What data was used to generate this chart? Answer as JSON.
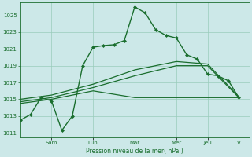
{
  "background_color": "#cce8e8",
  "grid_color": "#99ccbb",
  "line_color": "#1a6e2e",
  "xlabel": "Pression niveau de la mer( hPa )",
  "ylim": [
    1010.5,
    1026.5
  ],
  "yticks": [
    1011,
    1013,
    1015,
    1017,
    1019,
    1021,
    1023,
    1025
  ],
  "x_day_labels": [
    "Sam",
    "Lun",
    "Mar",
    "Mer",
    "Jeu",
    "V"
  ],
  "x_day_positions": [
    6,
    14,
    22,
    30,
    36,
    42
  ],
  "xlim": [
    0,
    44
  ],
  "series": [
    {
      "x": [
        0,
        2,
        4,
        6,
        8,
        10,
        12,
        14,
        16,
        18,
        20,
        22,
        24,
        26,
        28,
        30,
        32,
        34,
        36,
        38,
        40,
        42
      ],
      "y": [
        1012.5,
        1013.2,
        1015.2,
        1014.8,
        1011.3,
        1013.0,
        1019.0,
        1021.2,
        1021.4,
        1021.5,
        1022.0,
        1026.0,
        1025.3,
        1023.3,
        1022.6,
        1022.3,
        1020.3,
        1019.8,
        1018.0,
        1017.8,
        1017.2,
        1015.2
      ],
      "marker": "D",
      "markersize": 2.0,
      "linewidth": 1.0
    },
    {
      "x": [
        0,
        6,
        14,
        22,
        30,
        36,
        42
      ],
      "y": [
        1015.0,
        1015.5,
        1016.8,
        1018.5,
        1019.5,
        1019.2,
        1015.3
      ],
      "marker": null,
      "markersize": 0,
      "linewidth": 0.9
    },
    {
      "x": [
        0,
        6,
        14,
        22,
        30,
        36,
        42
      ],
      "y": [
        1014.7,
        1015.2,
        1016.4,
        1017.8,
        1019.0,
        1019.0,
        1015.2
      ],
      "marker": null,
      "markersize": 0,
      "linewidth": 0.9
    },
    {
      "x": [
        0,
        6,
        14,
        22,
        30,
        36,
        42
      ],
      "y": [
        1014.5,
        1015.0,
        1016.0,
        1015.2,
        1015.2,
        1015.2,
        1015.2
      ],
      "marker": null,
      "markersize": 0,
      "linewidth": 0.9
    }
  ]
}
